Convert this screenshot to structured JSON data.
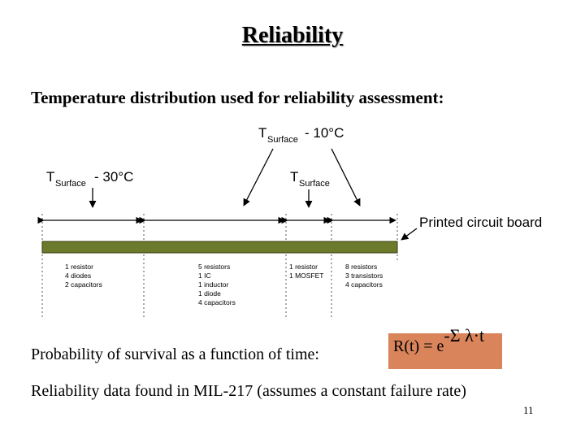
{
  "slide": {
    "title": "Reliability",
    "subtitle": "Temperature distribution used for reliability assessment:",
    "survival_text": "Probability of survival as a function of time:",
    "formula": {
      "lhs": "R(t) = e",
      "exponent": "-Σ λ·t"
    },
    "mil_text": "Reliability data found in MIL-217 (assumes a constant failure rate)",
    "page_number": "11"
  },
  "figure": {
    "labels": {
      "t_left_main": "T",
      "t_left_sub": "Surface",
      "t_left_rest": "- 30°C",
      "t_top_main": "T",
      "t_top_sub": "Surface",
      "t_top_rest": "- 10°C",
      "t_mid_main": "T",
      "t_mid_sub": "Surface",
      "pcb_label": "Printed circuit board"
    },
    "board_color": "#6b7a2b",
    "component_groups": [
      [
        "1 resistor",
        "4 diodes",
        "2 capacitors"
      ],
      [
        "5 resistors",
        "1 IC",
        "1 inductor",
        "1 diode",
        "4 capacitors"
      ],
      [
        "1 resistor",
        "1 MOSFET"
      ],
      [
        "8 resistors",
        "3 transistors",
        "4 capacitors"
      ]
    ]
  }
}
